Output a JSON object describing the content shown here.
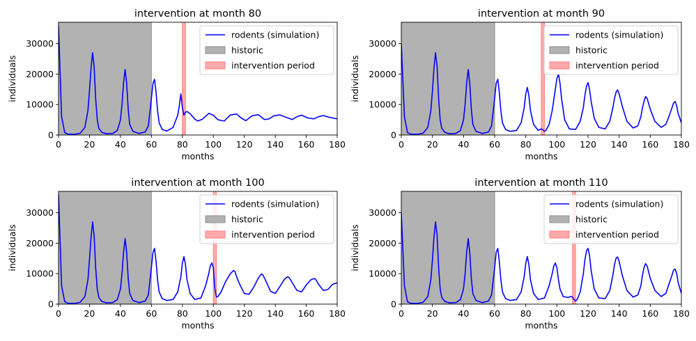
{
  "chart_data": [
    {
      "type": "line",
      "title": "intervention at month 80",
      "xlabel": "months",
      "ylabel": "individuals",
      "xlim": [
        0,
        180
      ],
      "ylim": [
        0,
        37000
      ],
      "xticks": [
        "0",
        "20",
        "40",
        "60",
        "80",
        "100",
        "120",
        "140",
        "160",
        "180"
      ],
      "yticks": [
        "0",
        "10000",
        "20000",
        "30000"
      ],
      "legend_position": "top-right",
      "legend": [
        "rodents (simulation)",
        "historic",
        "intervention period"
      ],
      "historic_span": [
        0,
        60
      ],
      "intervention_span": [
        80,
        82
      ],
      "series": [
        {
          "name": "rodents (simulation)",
          "x": [
            0,
            2,
            4,
            6,
            10,
            14,
            17,
            19,
            20,
            21,
            22,
            23,
            24,
            25,
            26,
            28,
            31,
            35,
            38,
            40,
            41,
            42,
            43,
            44,
            45,
            46,
            48,
            52,
            56,
            58,
            59,
            60,
            61,
            62,
            63,
            64,
            65,
            67,
            70,
            74,
            77,
            78,
            79,
            80,
            81,
            82,
            83,
            85,
            88,
            90,
            93,
            97,
            100,
            103,
            107,
            111,
            115,
            118,
            121,
            125,
            129,
            133,
            136,
            139,
            143,
            147,
            151,
            154,
            157,
            161,
            165,
            168,
            171,
            175,
            180
          ],
          "y": [
            36000,
            6000,
            800,
            300,
            200,
            600,
            2500,
            8000,
            14500,
            22000,
            27000,
            22500,
            12000,
            5000,
            2200,
            900,
            400,
            500,
            1500,
            5000,
            10000,
            17000,
            21500,
            17000,
            8500,
            3500,
            1200,
            500,
            1000,
            3000,
            7500,
            12000,
            17000,
            18300,
            14000,
            8000,
            4000,
            1800,
            1300,
            2500,
            6500,
            9500,
            13500,
            9000,
            6500,
            7500,
            7700,
            7000,
            5200,
            4600,
            5200,
            7100,
            6500,
            5000,
            4600,
            6600,
            6900,
            5600,
            4700,
            6300,
            6700,
            5100,
            5300,
            6300,
            6600,
            5800,
            5100,
            6000,
            6500,
            5600,
            5300,
            6000,
            6400,
            5800,
            5300
          ]
        }
      ]
    },
    {
      "type": "line",
      "title": "intervention at month 90",
      "xlabel": "months",
      "ylabel": "individuals",
      "xlim": [
        0,
        180
      ],
      "ylim": [
        0,
        37000
      ],
      "xticks": [
        "0",
        "20",
        "40",
        "60",
        "80",
        "100",
        "120",
        "140",
        "160",
        "180"
      ],
      "yticks": [
        "0",
        "10000",
        "20000",
        "30000"
      ],
      "legend_position": "top-right",
      "legend": [
        "rodents (simulation)",
        "historic",
        "intervention period"
      ],
      "historic_span": [
        0,
        60
      ],
      "intervention_span": [
        90,
        92
      ],
      "series": [
        {
          "name": "rodents (simulation)",
          "x": [
            0,
            2,
            4,
            6,
            10,
            14,
            17,
            19,
            20,
            21,
            22,
            23,
            24,
            25,
            26,
            28,
            31,
            35,
            38,
            40,
            41,
            42,
            43,
            44,
            45,
            46,
            48,
            52,
            56,
            58,
            59,
            60,
            61,
            62,
            63,
            64,
            65,
            67,
            70,
            74,
            77,
            79,
            80,
            81,
            82,
            83,
            85,
            88,
            89,
            90,
            91,
            92,
            93,
            95,
            97,
            99,
            100,
            101,
            102,
            103,
            105,
            108,
            112,
            115,
            117,
            118,
            119,
            120,
            121,
            122,
            124,
            127,
            131,
            134,
            136,
            137,
            138,
            139,
            140,
            142,
            145,
            149,
            152,
            154,
            155,
            156,
            157,
            158,
            160,
            163,
            167,
            170,
            172,
            174,
            175,
            176,
            177,
            178,
            180
          ],
          "y": [
            30000,
            6000,
            800,
            300,
            200,
            600,
            2500,
            8000,
            14500,
            22000,
            27000,
            22500,
            12000,
            5000,
            2200,
            900,
            400,
            500,
            1500,
            5000,
            10000,
            17000,
            21500,
            17000,
            8500,
            3500,
            1200,
            500,
            1000,
            3000,
            7500,
            12000,
            17000,
            18300,
            14000,
            8000,
            4000,
            1800,
            1200,
            1500,
            4000,
            9000,
            13500,
            15600,
            13000,
            8000,
            3500,
            1500,
            1800,
            2000,
            1700,
            1200,
            1500,
            3500,
            8000,
            15000,
            18500,
            20000,
            17000,
            12000,
            5000,
            2000,
            1800,
            4500,
            9000,
            13000,
            16000,
            17200,
            15000,
            11000,
            5500,
            2500,
            2000,
            4500,
            9000,
            12000,
            14000,
            14800,
            13500,
            9500,
            4500,
            2300,
            3000,
            6000,
            9000,
            11000,
            12600,
            12000,
            8500,
            4500,
            2500,
            3500,
            6000,
            9000,
            10500,
            11000,
            9500,
            7000,
            4000
          ]
        }
      ]
    },
    {
      "type": "line",
      "title": "intervention at month 100",
      "xlabel": "months",
      "ylabel": "individuals",
      "xlim": [
        0,
        180
      ],
      "ylim": [
        0,
        37000
      ],
      "xticks": [
        "0",
        "20",
        "40",
        "60",
        "80",
        "100",
        "120",
        "140",
        "160",
        "180"
      ],
      "yticks": [
        "0",
        "10000",
        "20000",
        "30000"
      ],
      "legend_position": "top-right",
      "legend": [
        "rodents (simulation)",
        "historic",
        "intervention period"
      ],
      "historic_span": [
        0,
        60
      ],
      "intervention_span": [
        100,
        102
      ],
      "series": [
        {
          "name": "rodents (simulation)",
          "x": [
            0,
            2,
            4,
            6,
            10,
            14,
            17,
            19,
            20,
            21,
            22,
            23,
            24,
            25,
            26,
            28,
            31,
            35,
            38,
            40,
            41,
            42,
            43,
            44,
            45,
            46,
            48,
            52,
            56,
            58,
            59,
            60,
            61,
            62,
            63,
            64,
            65,
            67,
            70,
            74,
            77,
            79,
            80,
            81,
            82,
            83,
            85,
            88,
            92,
            95,
            97,
            98,
            99,
            100,
            101,
            102,
            103,
            105,
            108,
            111,
            113,
            114,
            115,
            117,
            120,
            123,
            126,
            129,
            131,
            132,
            134,
            137,
            140,
            143,
            146,
            148,
            149,
            151,
            154,
            157,
            160,
            163,
            165,
            166,
            168,
            171,
            174,
            177,
            180
          ],
          "y": [
            36000,
            6000,
            800,
            300,
            200,
            600,
            2500,
            8000,
            14500,
            22000,
            27000,
            22500,
            12000,
            5000,
            2200,
            900,
            400,
            500,
            1500,
            5000,
            10000,
            17000,
            21500,
            17000,
            8500,
            3500,
            1200,
            500,
            1000,
            3000,
            7500,
            12000,
            17000,
            18300,
            14000,
            8000,
            4000,
            1800,
            1200,
            1500,
            4000,
            9000,
            13500,
            15600,
            13000,
            8000,
            3500,
            1500,
            2000,
            6000,
            10000,
            12500,
            13500,
            12000,
            5000,
            2300,
            2500,
            4000,
            7500,
            10000,
            11000,
            10700,
            9000,
            6500,
            3500,
            3200,
            5500,
            8500,
            9900,
            9600,
            7500,
            4200,
            3500,
            5800,
            8200,
            9000,
            8700,
            7000,
            4500,
            4000,
            6300,
            8000,
            8400,
            8200,
            6500,
            4500,
            4800,
            6500,
            7000
          ]
        }
      ]
    },
    {
      "type": "line",
      "title": "intervention at month 110",
      "xlabel": "months",
      "ylabel": "individuals",
      "xlim": [
        0,
        180
      ],
      "ylim": [
        0,
        37000
      ],
      "xticks": [
        "0",
        "20",
        "40",
        "60",
        "80",
        "100",
        "120",
        "140",
        "160",
        "180"
      ],
      "yticks": [
        "0",
        "10000",
        "20000",
        "30000"
      ],
      "legend_position": "top-right",
      "legend": [
        "rodents (simulation)",
        "historic",
        "intervention period"
      ],
      "historic_span": [
        0,
        60
      ],
      "intervention_span": [
        110,
        112
      ],
      "series": [
        {
          "name": "rodents (simulation)",
          "x": [
            0,
            2,
            4,
            6,
            10,
            14,
            17,
            19,
            20,
            21,
            22,
            23,
            24,
            25,
            26,
            28,
            31,
            35,
            38,
            40,
            41,
            42,
            43,
            44,
            45,
            46,
            48,
            52,
            56,
            58,
            59,
            60,
            61,
            62,
            63,
            64,
            65,
            67,
            70,
            74,
            77,
            79,
            80,
            81,
            82,
            83,
            85,
            88,
            92,
            95,
            97,
            98,
            99,
            100,
            101,
            102,
            104,
            107,
            109,
            110,
            111,
            112,
            113,
            115,
            117,
            118,
            119,
            120,
            121,
            122,
            124,
            127,
            131,
            134,
            136,
            137,
            138,
            139,
            140,
            142,
            145,
            149,
            152,
            154,
            155,
            156,
            157,
            158,
            160,
            163,
            167,
            170,
            172,
            174,
            175,
            176,
            177,
            178,
            180
          ],
          "y": [
            30000,
            6000,
            800,
            300,
            200,
            600,
            2500,
            8000,
            14500,
            22000,
            27000,
            22500,
            12000,
            5000,
            2200,
            900,
            400,
            500,
            1500,
            5000,
            10000,
            17000,
            21500,
            17000,
            8500,
            3500,
            1200,
            500,
            1000,
            3000,
            7500,
            12000,
            17000,
            18300,
            14000,
            8000,
            4000,
            1800,
            1200,
            1500,
            4000,
            9000,
            13500,
            15600,
            13000,
            8000,
            3500,
            1500,
            2000,
            6000,
            10000,
            12500,
            13500,
            12000,
            8000,
            5000,
            2500,
            2200,
            2500,
            2300,
            1500,
            1000,
            1500,
            4000,
            10000,
            14500,
            17500,
            18300,
            16000,
            11000,
            5000,
            2000,
            1800,
            4500,
            9500,
            13000,
            15000,
            15500,
            14000,
            9500,
            4500,
            2300,
            3000,
            6000,
            9500,
            12000,
            13300,
            12500,
            8500,
            4500,
            2500,
            3500,
            6500,
            9500,
            11200,
            11500,
            10000,
            7000,
            3500
          ]
        }
      ]
    }
  ],
  "colors": {
    "line": "#0000ff",
    "historic_fill": "#b2b2b2",
    "historic_edge": "#8f8f8f",
    "intervention_fill": "#ffaaaa",
    "intervention_edge": "#ff7f7f"
  }
}
